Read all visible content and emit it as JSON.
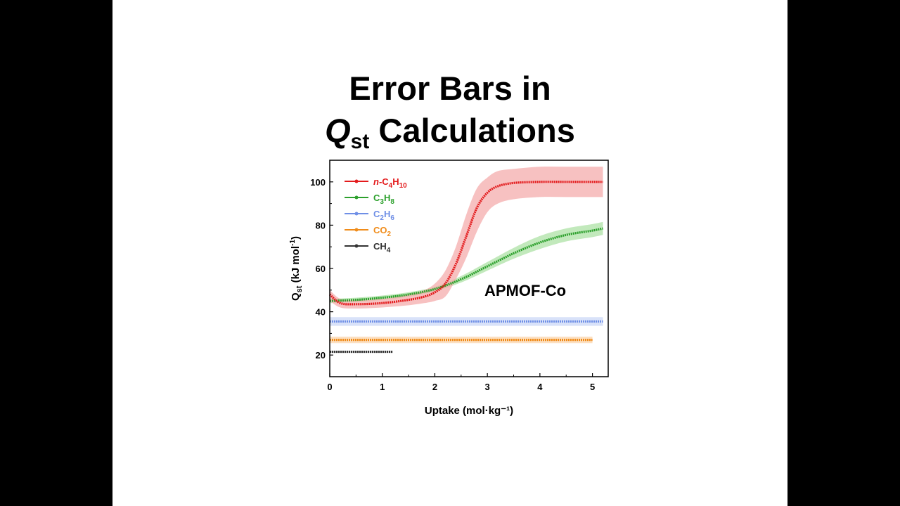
{
  "slide": {
    "title_line1": "Error Bars in",
    "title_q": "Q",
    "title_q_sub": "st",
    "title_rest": " Calculations"
  },
  "chart_data": {
    "type": "line",
    "title": "",
    "xlabel": "Uptake (mol·kg⁻¹)",
    "ylabel_main": "Q",
    "ylabel_sub": "st",
    "ylabel_rest": " (kJ mol",
    "ylabel_sup": "-1",
    "ylabel_close": ")",
    "xlim": [
      0,
      5.3
    ],
    "ylim": [
      10,
      110
    ],
    "xticks": [
      0,
      1,
      2,
      3,
      4,
      5
    ],
    "yticks": [
      20,
      40,
      60,
      80,
      100
    ],
    "grid": false,
    "legend_position": "top-left",
    "annotation": "APMOF-Co",
    "series": [
      {
        "key": "c4h10",
        "prefix": "n-",
        "name_parts": [
          [
            "C",
            ""
          ],
          [
            "4",
            "sub"
          ],
          [
            "H",
            ""
          ],
          [
            "10",
            "sub"
          ]
        ],
        "color": "#e31a1c",
        "band_color": "#f4a6a6",
        "x": [
          0.0,
          0.2,
          0.5,
          1.0,
          1.5,
          1.8,
          2.0,
          2.2,
          2.4,
          2.6,
          2.8,
          3.0,
          3.2,
          3.5,
          4.0,
          4.5,
          5.0,
          5.2
        ],
        "y": [
          48,
          44,
          43.5,
          44,
          45.5,
          47,
          49,
          53,
          62,
          75,
          88,
          95,
          98,
          99.5,
          100,
          100,
          100,
          100
        ],
        "lower": [
          45,
          42,
          41.5,
          42,
          43,
          44,
          45,
          47,
          55,
          65,
          77,
          86,
          90,
          92,
          93,
          93,
          93,
          93
        ],
        "upper": [
          50,
          46,
          45.5,
          46,
          48,
          50,
          53,
          59,
          70,
          85,
          97,
          102,
          105,
          106,
          107,
          107,
          107,
          107
        ]
      },
      {
        "key": "c3h8",
        "prefix": "",
        "name_parts": [
          [
            "C",
            ""
          ],
          [
            "3",
            "sub"
          ],
          [
            "H",
            ""
          ],
          [
            "8",
            "sub"
          ]
        ],
        "color": "#2ca02c",
        "band_color": "#a8e0a0",
        "x": [
          0.0,
          0.5,
          1.0,
          1.5,
          2.0,
          2.5,
          3.0,
          3.5,
          4.0,
          4.5,
          5.0,
          5.2
        ],
        "y": [
          45,
          45.5,
          46.5,
          48,
          50.5,
          55,
          61,
          67,
          72,
          75.5,
          77.5,
          78.5
        ],
        "lower": [
          44,
          44.5,
          45.5,
          47,
          49.5,
          53.5,
          59,
          64.5,
          69,
          72.5,
          74.5,
          75.5
        ],
        "upper": [
          46,
          46.5,
          47.5,
          49,
          51.5,
          56.5,
          63,
          69.5,
          75,
          78.5,
          80.5,
          81.5
        ]
      },
      {
        "key": "c2h6",
        "prefix": "",
        "name_parts": [
          [
            "C",
            ""
          ],
          [
            "2",
            "sub"
          ],
          [
            "H",
            ""
          ],
          [
            "6",
            "sub"
          ]
        ],
        "color": "#6f8fe6",
        "band_color": "#c9d5f7",
        "x": [
          0.0,
          5.2
        ],
        "y": [
          35.5,
          35.5
        ],
        "lower": [
          33.5,
          33.5
        ],
        "upper": [
          37.5,
          37.5
        ]
      },
      {
        "key": "co2",
        "prefix": "",
        "name_parts": [
          [
            "CO",
            ""
          ],
          [
            "2",
            "sub"
          ]
        ],
        "color": "#f08c1a",
        "band_color": "#fbd3a8",
        "x": [
          0.0,
          5.0
        ],
        "y": [
          27,
          27
        ],
        "lower": [
          25.5,
          25.5
        ],
        "upper": [
          28.5,
          28.5
        ]
      },
      {
        "key": "ch4",
        "prefix": "",
        "name_parts": [
          [
            "CH",
            ""
          ],
          [
            "4",
            "sub"
          ]
        ],
        "color": "#333333",
        "band_color": "#bdbdbd",
        "x": [
          0.0,
          1.2
        ],
        "y": [
          21.5,
          21.5
        ],
        "lower": [
          21,
          21
        ],
        "upper": [
          22,
          22
        ]
      }
    ]
  }
}
